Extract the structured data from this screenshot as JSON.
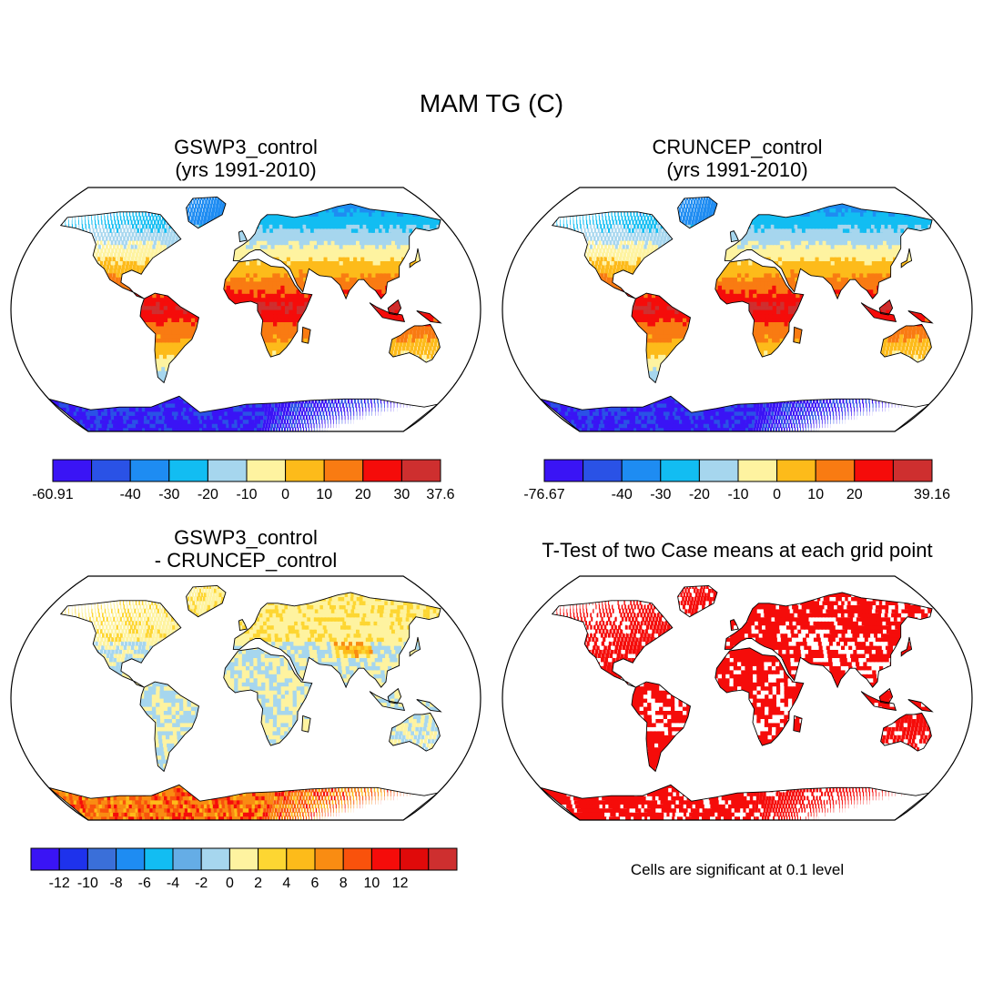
{
  "title": "MAM TG (C)",
  "panels": [
    {
      "id": "gswp3",
      "title_line1": "GSWP3_control",
      "title_line2": "(yrs 1991-2010)",
      "fill_palette": [
        "#3a14f5",
        "#2a52e6",
        "#1e8cf2",
        "#12bdf2",
        "#a6d6ee",
        "#fef3a0",
        "#fdbb1a",
        "#f97b12",
        "#f50c0a",
        "#ce2f2f"
      ],
      "colorbar": {
        "colors": [
          "#3a14f5",
          "#2a52e6",
          "#1e8cf2",
          "#12bdf2",
          "#a6d6ee",
          "#fef3a0",
          "#fdbb1a",
          "#f97b12",
          "#f50c0a",
          "#ce2f2f"
        ],
        "labels": [
          "-60.91",
          "",
          "-40",
          "-30",
          "-20",
          "-10",
          "0",
          "10",
          "20",
          "30",
          "37.6"
        ]
      }
    },
    {
      "id": "cruncep",
      "title_line1": "CRUNCEP_control",
      "title_line2": "(yrs 1991-2010)",
      "fill_palette": [
        "#3a14f5",
        "#2a52e6",
        "#1e8cf2",
        "#12bdf2",
        "#a6d6ee",
        "#fef3a0",
        "#fdbb1a",
        "#f97b12",
        "#f50c0a",
        "#ce2f2f"
      ],
      "colorbar": {
        "colors": [
          "#3a14f5",
          "#2a52e6",
          "#1e8cf2",
          "#12bdf2",
          "#a6d6ee",
          "#fef3a0",
          "#fdbb1a",
          "#f97b12",
          "#f50c0a",
          "#ce2f2f"
        ],
        "labels": [
          "-76.67",
          "",
          "-40",
          "-30",
          "-20",
          "-10",
          "0",
          "10",
          "20",
          "",
          "39.16"
        ]
      }
    },
    {
      "id": "difference",
      "title_line1": "GSWP3_control",
      "title_line2": "- CRUNCEP_control",
      "colorbar": {
        "colors": [
          "#3a14f5",
          "#1e32ec",
          "#3a6fd9",
          "#1e8cf2",
          "#12bdf2",
          "#65ade6",
          "#a6d6ee",
          "#fef3a0",
          "#fdd632",
          "#fdbb1a",
          "#f98c12",
          "#f9520c",
          "#f50c0a",
          "#e00a0a",
          "#ce2f2f"
        ],
        "labels": [
          "",
          "-12",
          "-10",
          "-8",
          "-6",
          "-4",
          "-2",
          "0",
          "2",
          "4",
          "6",
          "8",
          "10",
          "12",
          "",
          ""
        ]
      }
    },
    {
      "id": "ttest",
      "title_line1": "T-Test of two Case means at each grid point",
      "significant_color": "#f50c0a",
      "note": "Cells are significant at 0.1 level"
    }
  ],
  "colors": {
    "outline": "#000000",
    "land_outline": "#000000"
  }
}
